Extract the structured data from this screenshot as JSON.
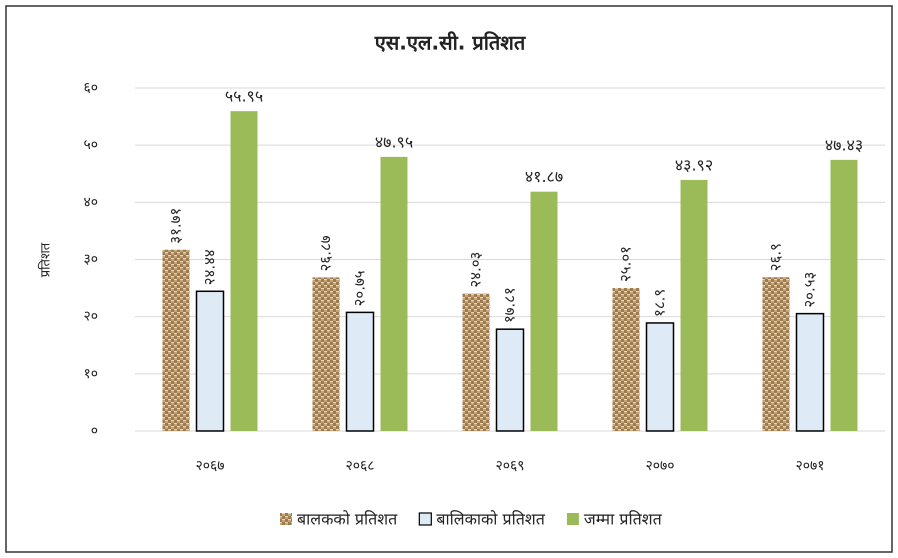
{
  "chart_data": {
    "type": "bar",
    "title": "एस.एल.सी. प्रतिशत",
    "ylabel": "प्रतिशत",
    "categories": [
      "२०६७",
      "२०६८",
      "२०६९",
      "२०७०",
      "२०७१"
    ],
    "series": [
      {
        "name": "बालकको प्रतिशत",
        "color": "#c4a478",
        "pattern": "woven",
        "values": [
          31.71,
          26.87,
          24.03,
          25.01,
          26.9
        ],
        "value_labels": [
          "३१.७१",
          "२६.८७",
          "२४.०३",
          "२५.०१",
          "२६.९"
        ]
      },
      {
        "name": "बालिकाको प्रतिशत",
        "color": "#deebf7",
        "edgecolor": "#000000",
        "values": [
          24.44,
          20.75,
          17.81,
          18.9,
          20.53
        ],
        "value_labels": [
          "२४.४४",
          "२०.७५",
          "१७.८१",
          "१८.९",
          "२०.५३"
        ]
      },
      {
        "name": "जम्मा प्रतिशत",
        "color": "#9bbb59",
        "values": [
          55.95,
          47.95,
          41.87,
          43.92,
          47.43
        ],
        "value_labels": [
          "५५.९५",
          "४७.९५",
          "४१.८७",
          "४३.९२",
          "४७.४३"
        ]
      }
    ],
    "ylim": [
      0,
      60
    ],
    "yticks": [
      {
        "value": 0,
        "label": "०"
      },
      {
        "value": 10,
        "label": "१०"
      },
      {
        "value": 20,
        "label": "२०"
      },
      {
        "value": 30,
        "label": "३०"
      },
      {
        "value": 40,
        "label": "४०"
      },
      {
        "value": 50,
        "label": "५०"
      },
      {
        "value": 60,
        "label": "६०"
      }
    ],
    "grid": true,
    "legend": "bottom"
  }
}
